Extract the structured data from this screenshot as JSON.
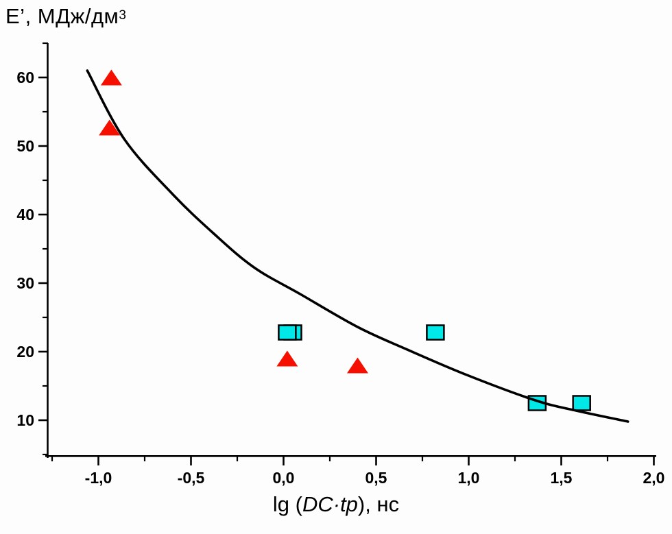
{
  "y_title": {
    "main": "E’, МДж/дм",
    "sup": "3"
  },
  "x_title": {
    "pre": "lg (",
    "italic": "DC·tp",
    "post": "), нс"
  },
  "chart_data": {
    "type": "scatter",
    "title": "",
    "xlabel": "lg (DC·tp), нс",
    "ylabel": "E’, МДж/дм³",
    "xlim": [
      -1.28,
      2.02
    ],
    "ylim": [
      4.8,
      64.8
    ],
    "grid": false,
    "legend": "none",
    "decimal_separator": ",",
    "x_ticks": {
      "major_values": [
        -1.0,
        -0.5,
        0.0,
        0.5,
        1.0,
        1.5,
        2.0
      ],
      "major_labels": [
        "-1,0",
        "-0,5",
        "0,0",
        "0,5",
        "1,0",
        "1,5",
        "2,0"
      ],
      "minor_values": [
        -1.25,
        -0.75,
        -0.25,
        0.25,
        0.75,
        1.25,
        1.75
      ]
    },
    "y_ticks": {
      "major_values": [
        10,
        20,
        30,
        40,
        50,
        60
      ],
      "major_labels": [
        "10",
        "20",
        "30",
        "40",
        "50",
        "60"
      ],
      "minor_values": [
        5,
        15,
        25,
        35,
        45,
        55,
        65
      ]
    },
    "series": [
      {
        "name": "red-triangles",
        "marker": "triangle",
        "color": "#f50f00",
        "points": [
          [
            -0.93,
            60.0
          ],
          [
            -0.94,
            52.7
          ],
          [
            0.02,
            19.0
          ],
          [
            0.4,
            18.0
          ]
        ]
      },
      {
        "name": "cyan-squares",
        "marker": "square",
        "color": "#00e8e8",
        "border_color": "#000000",
        "points": [
          [
            0.05,
            22.8
          ],
          [
            0.02,
            22.8
          ],
          [
            0.82,
            22.8
          ],
          [
            1.37,
            12.5
          ],
          [
            1.61,
            12.5
          ]
        ]
      }
    ],
    "fit_curve": {
      "name": "trend-curve",
      "color": "#000000",
      "points": [
        [
          -1.06,
          61.0
        ],
        [
          -0.86,
          51.0
        ],
        [
          -0.6,
          43.0
        ],
        [
          -0.38,
          37.3
        ],
        [
          -0.16,
          32.3
        ],
        [
          0.09,
          28.4
        ],
        [
          0.4,
          23.6
        ],
        [
          0.66,
          20.4
        ],
        [
          0.99,
          16.6
        ],
        [
          1.36,
          12.9
        ],
        [
          1.58,
          11.4
        ],
        [
          1.86,
          9.8
        ]
      ]
    }
  }
}
